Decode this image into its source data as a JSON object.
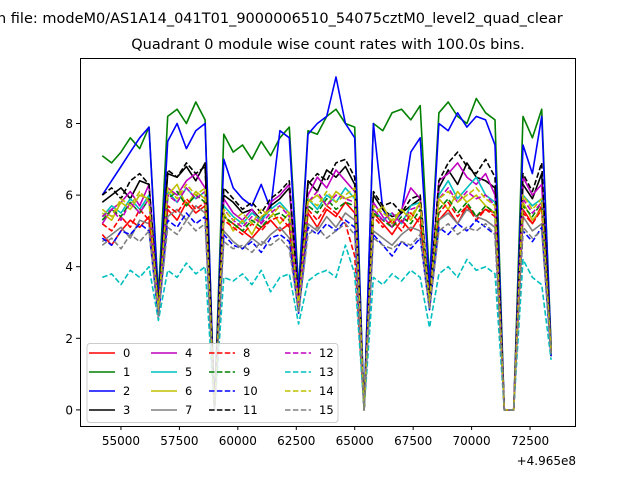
{
  "chart_data": {
    "type": "line",
    "suptitle": "n file: modeM0/AS1A14_041T01_9000006510_54075cztM0_level2_quad_clear",
    "title": "Quadrant 0 module wise count rates with 100.0s bins.",
    "xlabel": "",
    "ylabel": "",
    "x_offset_text": "+4.965e8",
    "xlim": [
      53248,
      74423
    ],
    "ylim": [
      -0.45,
      9.83
    ],
    "xticks": [
      55000,
      57500,
      60000,
      62500,
      65000,
      67500,
      70000,
      72500
    ],
    "xtick_labels": [
      "55000",
      "57500",
      "60000",
      "62500",
      "65000",
      "67500",
      "70000",
      "72500"
    ],
    "yticks": [
      0,
      2,
      4,
      6,
      8
    ],
    "ytick_labels": [
      "0",
      "2",
      "4",
      "6",
      "8"
    ],
    "grid": false,
    "legend_position": "lower-left",
    "x_start": 54200,
    "x_step": 400,
    "series": [
      {
        "name": "0",
        "color": "#ff0000",
        "dash": "solid",
        "values": [
          4.9,
          4.6,
          5.0,
          5.3,
          5.1,
          5.4,
          2.7,
          5.6,
          5.3,
          5.8,
          5.5,
          5.7,
          0,
          5.4,
          5.2,
          5.0,
          4.8,
          5.1,
          5.3,
          5.0,
          5.2,
          2.8,
          5.5,
          5.1,
          5.6,
          5.4,
          5.8,
          5.5,
          0,
          5.5,
          5.2,
          4.9,
          5.3,
          5.0,
          5.4,
          2.9,
          5.3,
          5.6,
          5.2,
          5.7,
          5.4,
          5.6,
          5.5,
          0,
          0,
          5.6,
          5.2,
          5.7,
          1.5
        ]
      },
      {
        "name": "1",
        "color": "#008000",
        "dash": "solid",
        "values": [
          7.1,
          6.9,
          7.2,
          7.6,
          7.3,
          7.9,
          3.2,
          8.2,
          8.4,
          8.0,
          8.6,
          8.1,
          0,
          7.7,
          7.2,
          7.4,
          7.0,
          7.5,
          7.1,
          7.6,
          7.9,
          3.4,
          7.8,
          7.7,
          8.2,
          8.4,
          8.0,
          7.9,
          0,
          8.0,
          7.8,
          8.3,
          8.4,
          8.1,
          8.5,
          3.6,
          8.3,
          8.6,
          8.2,
          8.0,
          8.7,
          8.3,
          8.1,
          0,
          0,
          8.2,
          7.6,
          8.4,
          1.8
        ]
      },
      {
        "name": "2",
        "color": "#0000ff",
        "dash": "solid",
        "values": [
          6.0,
          6.4,
          6.8,
          7.2,
          7.6,
          7.9,
          3.0,
          7.5,
          8.0,
          7.3,
          7.8,
          8.0,
          0,
          7.0,
          6.2,
          5.9,
          5.7,
          6.3,
          5.6,
          7.8,
          7.6,
          3.2,
          7.7,
          8.0,
          8.2,
          9.3,
          8.0,
          7.6,
          0,
          8.0,
          5.6,
          5.2,
          5.5,
          7.2,
          7.6,
          3.4,
          8.0,
          7.8,
          8.3,
          7.9,
          8.2,
          8.1,
          7.4,
          0,
          0,
          7.4,
          6.6,
          8.2,
          1.7
        ]
      },
      {
        "name": "3",
        "color": "#000000",
        "dash": "solid",
        "values": [
          5.8,
          6.0,
          6.2,
          5.9,
          6.4,
          6.3,
          2.9,
          6.6,
          6.5,
          6.8,
          6.4,
          6.9,
          0,
          6.0,
          5.8,
          5.5,
          5.6,
          5.3,
          5.7,
          5.9,
          6.2,
          3.0,
          6.4,
          6.1,
          6.7,
          6.5,
          6.8,
          6.3,
          0,
          6.0,
          5.6,
          5.4,
          5.5,
          5.7,
          5.9,
          3.1,
          6.2,
          6.7,
          6.3,
          6.9,
          6.5,
          6.4,
          6.2,
          0,
          0,
          6.3,
          5.9,
          6.6,
          1.6
        ]
      },
      {
        "name": "4",
        "color": "#bf00bf",
        "dash": "solid",
        "values": [
          5.2,
          5.6,
          5.8,
          6.1,
          5.7,
          6.3,
          2.8,
          6.2,
          6.0,
          6.4,
          6.6,
          6.2,
          0,
          5.9,
          5.5,
          5.3,
          5.6,
          5.2,
          5.8,
          6.0,
          6.3,
          3.0,
          6.0,
          6.5,
          6.2,
          6.7,
          6.4,
          6.1,
          0,
          5.8,
          5.4,
          5.1,
          5.6,
          6.2,
          5.9,
          3.1,
          6.4,
          6.6,
          6.9,
          6.5,
          6.3,
          6.6,
          6.0,
          0,
          0,
          6.5,
          6.0,
          6.3,
          1.6
        ]
      },
      {
        "name": "5",
        "color": "#00bfbf",
        "dash": "solid",
        "values": [
          5.4,
          5.7,
          5.5,
          5.9,
          5.6,
          6.0,
          2.7,
          6.1,
          5.8,
          6.2,
          5.9,
          6.1,
          0,
          5.7,
          5.4,
          5.2,
          5.5,
          5.3,
          5.6,
          5.8,
          5.5,
          2.9,
          5.9,
          5.6,
          6.0,
          5.8,
          6.2,
          5.9,
          0,
          5.6,
          5.3,
          5.5,
          5.2,
          5.7,
          5.8,
          3.0,
          6.0,
          6.4,
          5.9,
          6.2,
          6.5,
          6.0,
          5.8,
          0,
          0,
          6.0,
          5.7,
          5.9,
          1.5
        ]
      },
      {
        "name": "6",
        "color": "#bfbf00",
        "dash": "solid",
        "values": [
          5.5,
          5.3,
          5.8,
          5.6,
          6.0,
          5.9,
          2.8,
          6.0,
          6.3,
          5.7,
          6.1,
          5.9,
          0,
          5.5,
          5.0,
          5.3,
          4.9,
          5.4,
          5.6,
          5.2,
          5.5,
          2.9,
          5.8,
          6.0,
          5.7,
          6.1,
          5.9,
          6.0,
          0,
          5.4,
          5.7,
          5.2,
          5.6,
          5.3,
          5.8,
          3.0,
          5.9,
          5.6,
          6.1,
          5.8,
          6.0,
          5.7,
          5.5,
          0,
          0,
          5.8,
          5.3,
          5.6,
          1.6
        ]
      },
      {
        "name": "7",
        "color": "#808080",
        "dash": "solid",
        "values": [
          4.7,
          4.9,
          5.1,
          4.8,
          5.3,
          5.2,
          2.6,
          5.4,
          5.6,
          5.3,
          5.7,
          5.5,
          0,
          5.0,
          4.7,
          4.5,
          4.8,
          4.6,
          4.9,
          5.1,
          4.8,
          2.7,
          5.2,
          5.0,
          5.4,
          5.1,
          5.5,
          5.3,
          0,
          5.0,
          4.8,
          4.6,
          4.9,
          5.1,
          5.0,
          2.8,
          5.3,
          5.5,
          5.2,
          5.6,
          5.4,
          5.3,
          5.1,
          0,
          0,
          5.4,
          5.0,
          5.2,
          1.5
        ]
      },
      {
        "name": "8",
        "color": "#ff0000",
        "dash": "dashed",
        "values": [
          5.2,
          5.0,
          5.4,
          5.1,
          5.6,
          5.3,
          2.7,
          5.7,
          5.5,
          5.9,
          5.6,
          5.8,
          0,
          5.3,
          5.1,
          4.9,
          5.2,
          5.0,
          5.3,
          5.4,
          5.1,
          2.8,
          5.6,
          5.3,
          5.7,
          5.5,
          5.2,
          4.3,
          0,
          5.4,
          5.1,
          5.3,
          5.0,
          5.5,
          5.2,
          2.9,
          5.5,
          5.8,
          5.4,
          5.7,
          5.3,
          5.6,
          5.4,
          0,
          0,
          5.5,
          5.2,
          5.6,
          1.5
        ]
      },
      {
        "name": "9",
        "color": "#008000",
        "dash": "dashed",
        "values": [
          5.3,
          5.6,
          5.4,
          5.8,
          5.5,
          5.9,
          2.8,
          5.9,
          6.1,
          5.7,
          6.0,
          5.8,
          0,
          5.4,
          5.2,
          5.0,
          5.3,
          5.1,
          5.4,
          5.5,
          5.3,
          2.9,
          5.7,
          5.5,
          5.9,
          5.6,
          5.8,
          5.7,
          0,
          5.5,
          5.3,
          5.1,
          5.4,
          5.2,
          5.6,
          3.0,
          5.6,
          5.9,
          5.5,
          5.8,
          5.4,
          5.7,
          5.5,
          0,
          0,
          5.7,
          5.4,
          5.8,
          1.6
        ]
      },
      {
        "name": "10",
        "color": "#0000ff",
        "dash": "dashed",
        "values": [
          4.8,
          4.6,
          5.0,
          4.9,
          5.2,
          5.0,
          2.6,
          5.3,
          5.1,
          5.5,
          5.2,
          5.4,
          0,
          4.9,
          4.6,
          4.5,
          4.7,
          4.4,
          4.8,
          4.9,
          4.7,
          2.7,
          5.1,
          4.9,
          5.2,
          5.0,
          5.3,
          5.1,
          0,
          4.9,
          4.6,
          4.3,
          4.7,
          4.5,
          4.8,
          2.8,
          5.1,
          4.9,
          5.2,
          5.0,
          5.3,
          5.1,
          4.9,
          0,
          0,
          5.0,
          4.7,
          5.1,
          1.5
        ]
      },
      {
        "name": "11",
        "color": "#000000",
        "dash": "dashed",
        "values": [
          6.0,
          6.2,
          5.9,
          6.4,
          6.6,
          6.3,
          2.9,
          6.7,
          6.5,
          6.9,
          6.6,
          6.8,
          0,
          6.2,
          5.9,
          5.6,
          5.8,
          5.5,
          5.9,
          6.1,
          6.4,
          3.0,
          6.3,
          6.6,
          6.4,
          6.9,
          7.0,
          6.5,
          0,
          6.1,
          5.7,
          5.8,
          5.5,
          5.9,
          6.0,
          3.1,
          6.4,
          6.9,
          7.2,
          6.8,
          6.6,
          7.0,
          6.5,
          0,
          0,
          6.6,
          6.1,
          6.9,
          1.6
        ]
      },
      {
        "name": "12",
        "color": "#bf00bf",
        "dash": "dashed",
        "values": [
          5.4,
          5.6,
          5.3,
          5.8,
          5.5,
          5.9,
          2.8,
          6.0,
          5.8,
          6.2,
          5.9,
          6.1,
          0,
          5.6,
          5.3,
          5.1,
          5.4,
          5.2,
          5.5,
          5.7,
          5.4,
          2.9,
          5.8,
          6.1,
          5.7,
          6.0,
          5.9,
          5.8,
          0,
          5.6,
          5.3,
          5.5,
          5.2,
          5.6,
          5.7,
          3.0,
          5.9,
          6.2,
          5.8,
          6.1,
          5.9,
          6.0,
          5.7,
          0,
          0,
          5.9,
          5.5,
          5.8,
          1.6
        ]
      },
      {
        "name": "13",
        "color": "#00bfbf",
        "dash": "dashed",
        "values": [
          3.7,
          3.8,
          3.5,
          3.9,
          3.7,
          4.0,
          2.5,
          3.9,
          3.7,
          4.1,
          3.8,
          4.0,
          0,
          3.7,
          3.6,
          3.8,
          3.5,
          3.9,
          3.3,
          3.7,
          3.8,
          2.4,
          3.6,
          3.8,
          3.9,
          3.7,
          4.6,
          3.8,
          0,
          3.7,
          3.5,
          3.8,
          3.6,
          3.9,
          3.7,
          2.3,
          3.8,
          4.0,
          3.7,
          4.2,
          3.9,
          4.0,
          3.8,
          0,
          0,
          4.2,
          3.7,
          3.5,
          1.4
        ]
      },
      {
        "name": "14",
        "color": "#bfbf00",
        "dash": "dashed",
        "values": [
          5.6,
          5.4,
          5.9,
          5.7,
          6.1,
          5.8,
          2.8,
          6.2,
          5.9,
          6.3,
          6.0,
          6.2,
          0,
          5.6,
          5.3,
          5.5,
          5.2,
          5.6,
          5.4,
          5.7,
          5.5,
          2.9,
          5.9,
          5.7,
          6.1,
          5.8,
          6.0,
          6.2,
          0,
          5.7,
          5.5,
          5.3,
          5.6,
          5.4,
          5.8,
          3.0,
          5.9,
          6.1,
          5.8,
          6.0,
          6.2,
          5.9,
          5.7,
          0,
          0,
          6.0,
          5.6,
          5.9,
          1.6
        ]
      },
      {
        "name": "15",
        "color": "#808080",
        "dash": "dashed",
        "values": [
          4.6,
          4.8,
          4.5,
          4.9,
          4.7,
          5.0,
          2.6,
          5.1,
          4.9,
          5.3,
          5.0,
          5.2,
          0,
          4.7,
          4.5,
          4.6,
          4.4,
          4.7,
          4.6,
          4.8,
          4.5,
          2.7,
          4.9,
          5.1,
          4.8,
          5.0,
          5.2,
          4.9,
          0,
          4.8,
          4.6,
          4.5,
          4.7,
          4.6,
          4.9,
          2.8,
          5.0,
          5.2,
          4.9,
          5.1,
          5.0,
          5.2,
          4.9,
          0,
          0,
          5.1,
          4.8,
          5.0,
          1.5
        ]
      }
    ]
  }
}
